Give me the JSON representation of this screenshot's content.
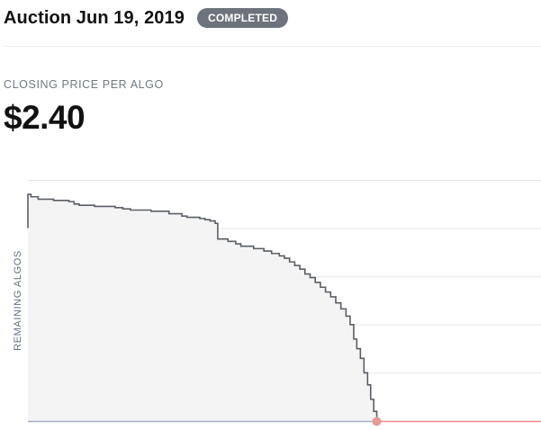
{
  "header": {
    "title": "Auction Jun 19, 2019",
    "status_badge": "COMPLETED"
  },
  "price": {
    "label": "CLOSING PRICE PER ALGO",
    "value": "$2.40"
  },
  "colors": {
    "badge_bg": "#6c737c",
    "curve": "#5a5f66",
    "area_fill": "#f4f4f4",
    "sold_out_line": "#ef8c84",
    "baseline": "#a3aec4",
    "closing_marker": "#e59a94",
    "gridline": "#e6e6e6"
  },
  "chart_data": {
    "type": "area",
    "title": "",
    "ylabel": "REMAINING ALGOS",
    "xlabel": "",
    "grid": true,
    "step": true,
    "xlim": [
      0,
      1
    ],
    "ylim": [
      0,
      1
    ],
    "gridlines_y": [
      0.2,
      0.4,
      0.6,
      0.8,
      1.0
    ],
    "series": [
      {
        "points": [
          [
            0.0,
            0.8
          ],
          [
            0.0,
            0.94
          ],
          [
            0.006,
            0.94
          ],
          [
            0.006,
            0.93
          ],
          [
            0.02,
            0.93
          ],
          [
            0.02,
            0.92
          ],
          [
            0.05,
            0.92
          ],
          [
            0.05,
            0.915
          ],
          [
            0.08,
            0.915
          ],
          [
            0.08,
            0.91
          ],
          [
            0.09,
            0.91
          ],
          [
            0.09,
            0.9
          ],
          [
            0.1,
            0.9
          ],
          [
            0.1,
            0.895
          ],
          [
            0.13,
            0.895
          ],
          [
            0.13,
            0.89
          ],
          [
            0.17,
            0.89
          ],
          [
            0.17,
            0.885
          ],
          [
            0.185,
            0.885
          ],
          [
            0.185,
            0.88
          ],
          [
            0.2,
            0.88
          ],
          [
            0.2,
            0.875
          ],
          [
            0.24,
            0.875
          ],
          [
            0.24,
            0.87
          ],
          [
            0.275,
            0.87
          ],
          [
            0.275,
            0.86
          ],
          [
            0.3,
            0.86
          ],
          [
            0.3,
            0.85
          ],
          [
            0.31,
            0.85
          ],
          [
            0.31,
            0.845
          ],
          [
            0.335,
            0.845
          ],
          [
            0.335,
            0.84
          ],
          [
            0.345,
            0.84
          ],
          [
            0.345,
            0.835
          ],
          [
            0.355,
            0.835
          ],
          [
            0.355,
            0.83
          ],
          [
            0.365,
            0.83
          ],
          [
            0.365,
            0.82
          ],
          [
            0.37,
            0.82
          ],
          [
            0.37,
            0.755
          ],
          [
            0.39,
            0.755
          ],
          [
            0.39,
            0.745
          ],
          [
            0.405,
            0.745
          ],
          [
            0.405,
            0.735
          ],
          [
            0.415,
            0.735
          ],
          [
            0.415,
            0.725
          ],
          [
            0.44,
            0.725
          ],
          [
            0.44,
            0.715
          ],
          [
            0.46,
            0.715
          ],
          [
            0.46,
            0.705
          ],
          [
            0.475,
            0.705
          ],
          [
            0.475,
            0.695
          ],
          [
            0.49,
            0.695
          ],
          [
            0.49,
            0.685
          ],
          [
            0.5,
            0.685
          ],
          [
            0.5,
            0.675
          ],
          [
            0.51,
            0.675
          ],
          [
            0.51,
            0.66
          ],
          [
            0.52,
            0.66
          ],
          [
            0.52,
            0.645
          ],
          [
            0.53,
            0.645
          ],
          [
            0.53,
            0.63
          ],
          [
            0.54,
            0.63
          ],
          [
            0.54,
            0.61
          ],
          [
            0.55,
            0.61
          ],
          [
            0.55,
            0.595
          ],
          [
            0.56,
            0.595
          ],
          [
            0.56,
            0.575
          ],
          [
            0.57,
            0.575
          ],
          [
            0.57,
            0.555
          ],
          [
            0.58,
            0.555
          ],
          [
            0.58,
            0.535
          ],
          [
            0.59,
            0.535
          ],
          [
            0.59,
            0.515
          ],
          [
            0.6,
            0.515
          ],
          [
            0.6,
            0.49
          ],
          [
            0.61,
            0.49
          ],
          [
            0.61,
            0.465
          ],
          [
            0.62,
            0.465
          ],
          [
            0.62,
            0.435
          ],
          [
            0.628,
            0.435
          ],
          [
            0.628,
            0.4
          ],
          [
            0.635,
            0.4
          ],
          [
            0.635,
            0.34
          ],
          [
            0.641,
            0.34
          ],
          [
            0.641,
            0.3
          ],
          [
            0.648,
            0.3
          ],
          [
            0.648,
            0.26
          ],
          [
            0.655,
            0.26
          ],
          [
            0.655,
            0.2
          ],
          [
            0.662,
            0.2
          ],
          [
            0.662,
            0.15
          ],
          [
            0.668,
            0.15
          ],
          [
            0.668,
            0.09
          ],
          [
            0.674,
            0.09
          ],
          [
            0.674,
            0.04
          ],
          [
            0.68,
            0.04
          ],
          [
            0.68,
            0.0
          ]
        ]
      }
    ],
    "sold_out_x": 0.68,
    "x_end": 1.0
  }
}
